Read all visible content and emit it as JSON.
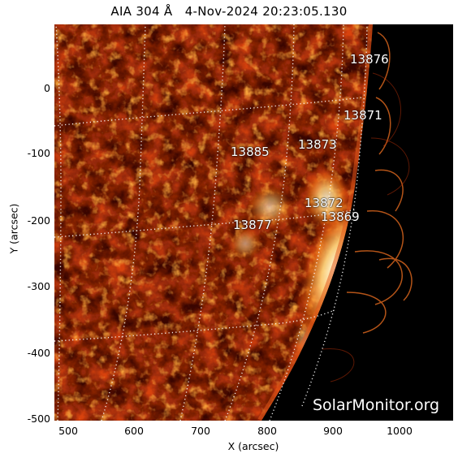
{
  "title": {
    "instrument": "AIA",
    "wavelength": "304 Å",
    "date": "4-Nov-2024",
    "time": "20:23:05.130"
  },
  "axes": {
    "xlabel": "X (arcsec)",
    "ylabel": "Y (arcsec)",
    "xticks": [
      "500",
      "600",
      "700",
      "800",
      "900",
      "1000"
    ],
    "yticks": [
      "0",
      "-100",
      "-200",
      "-300",
      "-400",
      "-500"
    ]
  },
  "regions": [
    {
      "id": "13876"
    },
    {
      "id": "13871"
    },
    {
      "id": "13873"
    },
    {
      "id": "13885"
    },
    {
      "id": "13872"
    },
    {
      "id": "13869"
    },
    {
      "id": "13877"
    }
  ],
  "watermark": "SolarMonitor.org",
  "colors": {
    "background": "#000000",
    "surface_dark": "#3a0500",
    "surface_mid": "#9a1a00",
    "surface_bright": "#e85a10",
    "flare": "#fff2c0",
    "grid": "#ffffff"
  }
}
